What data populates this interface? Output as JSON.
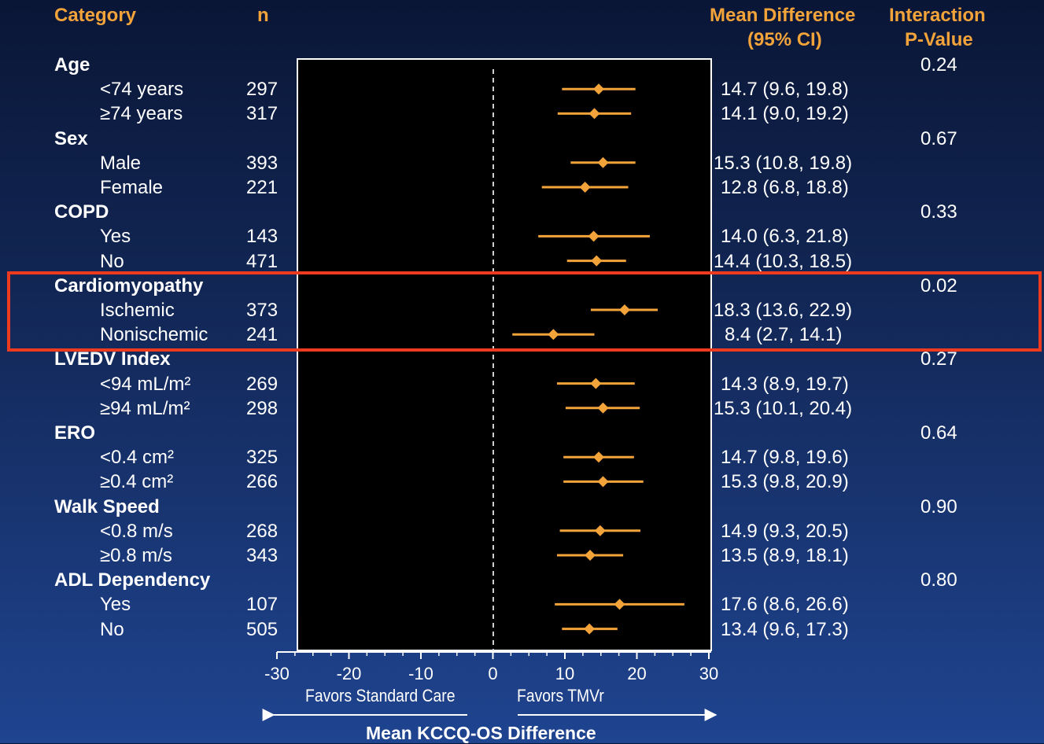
{
  "headers": {
    "category": "Category",
    "n": "n",
    "mean_diff_line1": "Mean Difference",
    "mean_diff_line2": "(95% CI)",
    "pvalue_line1": "Interaction",
    "pvalue_line2": "P-Value"
  },
  "axis": {
    "favors_left": "Favors Standard Care",
    "favors_right": "Favors TMVr",
    "xlabel": "Mean KCCQ-OS Difference"
  },
  "colors": {
    "marker": "#f2a33a",
    "header": "#f2a33a",
    "highlight": "#ee3a1e",
    "plot_bg": "#000000"
  },
  "highlighted_group": "Cardiomyopathy",
  "chart_data": {
    "type": "forest",
    "xlim": [
      -30,
      30
    ],
    "xticks": [
      "-30",
      "-20",
      "-10",
      "0",
      "10",
      "20",
      "30"
    ],
    "reference_line": 0,
    "groups": [
      {
        "category": "Age",
        "p_value": "0.24",
        "rows": [
          {
            "label": "<74 years",
            "n": "297",
            "ci_text": "14.7 (9.6, 19.8)",
            "est": 14.7,
            "lo": 9.6,
            "hi": 19.8
          },
          {
            "label": "≥74 years",
            "n": "317",
            "ci_text": "14.1 (9.0, 19.2)",
            "est": 14.1,
            "lo": 9.0,
            "hi": 19.2
          }
        ]
      },
      {
        "category": "Sex",
        "p_value": "0.67",
        "rows": [
          {
            "label": "Male",
            "n": "393",
            "ci_text": "15.3 (10.8, 19.8)",
            "est": 15.3,
            "lo": 10.8,
            "hi": 19.8
          },
          {
            "label": "Female",
            "n": "221",
            "ci_text": "12.8 (6.8, 18.8)",
            "est": 12.8,
            "lo": 6.8,
            "hi": 18.8
          }
        ]
      },
      {
        "category": "COPD",
        "p_value": "0.33",
        "rows": [
          {
            "label": "Yes",
            "n": "143",
            "ci_text": "14.0 (6.3, 21.8)",
            "est": 14.0,
            "lo": 6.3,
            "hi": 21.8
          },
          {
            "label": "No",
            "n": "471",
            "ci_text": "14.4 (10.3, 18.5)",
            "est": 14.4,
            "lo": 10.3,
            "hi": 18.5
          }
        ]
      },
      {
        "category": "Cardiomyopathy",
        "p_value": "0.02",
        "rows": [
          {
            "label": "Ischemic",
            "n": "373",
            "ci_text": "18.3 (13.6, 22.9)",
            "est": 18.3,
            "lo": 13.6,
            "hi": 22.9
          },
          {
            "label": "Nonischemic",
            "n": "241",
            "ci_text": "8.4 (2.7, 14.1)",
            "est": 8.4,
            "lo": 2.7,
            "hi": 14.1
          }
        ]
      },
      {
        "category": "LVEDV Index",
        "p_value": "0.27",
        "rows": [
          {
            "label": "<94 mL/m²",
            "n": "269",
            "ci_text": "14.3 (8.9, 19.7)",
            "est": 14.3,
            "lo": 8.9,
            "hi": 19.7
          },
          {
            "label": "≥94 mL/m²",
            "n": "298",
            "ci_text": "15.3 (10.1, 20.4)",
            "est": 15.3,
            "lo": 10.1,
            "hi": 20.4
          }
        ]
      },
      {
        "category": "ERO",
        "p_value": "0.64",
        "rows": [
          {
            "label": "<0.4 cm²",
            "n": "325",
            "ci_text": "14.7 (9.8, 19.6)",
            "est": 14.7,
            "lo": 9.8,
            "hi": 19.6
          },
          {
            "label": "≥0.4 cm²",
            "n": "266",
            "ci_text": "15.3 (9.8, 20.9)",
            "est": 15.3,
            "lo": 9.8,
            "hi": 20.9
          }
        ]
      },
      {
        "category": "Walk Speed",
        "p_value": "0.90",
        "rows": [
          {
            "label": "<0.8 m/s",
            "n": "268",
            "ci_text": "14.9 (9.3, 20.5)",
            "est": 14.9,
            "lo": 9.3,
            "hi": 20.5
          },
          {
            "label": "≥0.8 m/s",
            "n": "343",
            "ci_text": "13.5 (8.9, 18.1)",
            "est": 13.5,
            "lo": 8.9,
            "hi": 18.1
          }
        ]
      },
      {
        "category": "ADL Dependency",
        "p_value": "0.80",
        "rows": [
          {
            "label": "Yes",
            "n": "107",
            "ci_text": "17.6 (8.6, 26.6)",
            "est": 17.6,
            "lo": 8.6,
            "hi": 26.6
          },
          {
            "label": "No",
            "n": "505",
            "ci_text": "13.4 (9.6, 17.3)",
            "est": 13.4,
            "lo": 9.6,
            "hi": 17.3
          }
        ]
      }
    ]
  }
}
